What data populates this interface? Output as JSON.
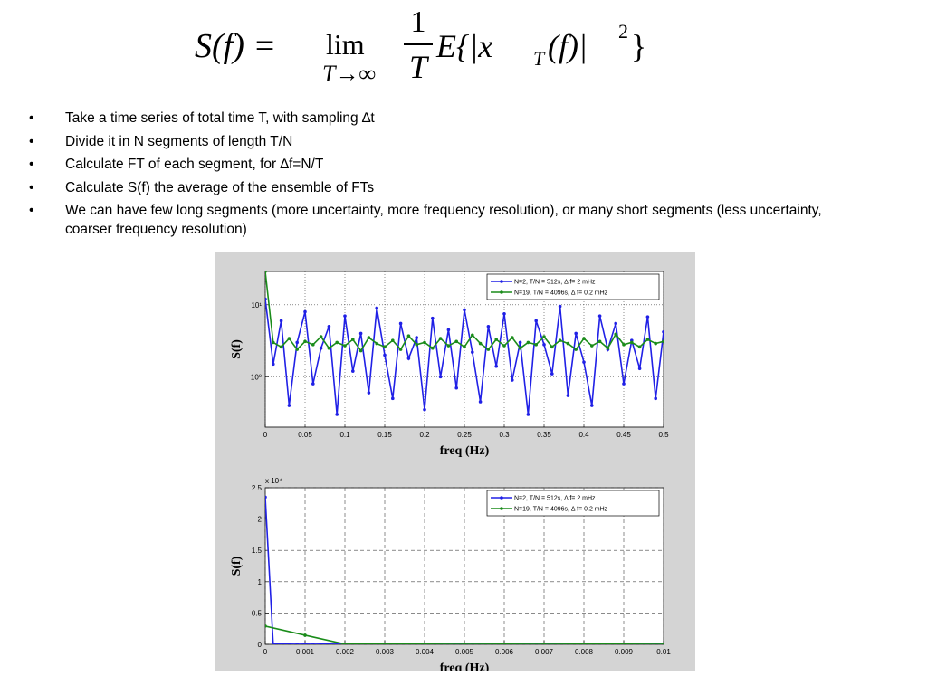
{
  "formula": {
    "lhs": "S(f) =",
    "lim": "lim",
    "lim_sub": "T→∞",
    "num": "1",
    "den": "T",
    "rhs": "E{|x",
    "rhs_sub": "T",
    "rhs_tail": "(f)|",
    "rhs_sup": "2",
    "rhs_close": "}"
  },
  "bullets": [
    "Take a time series of total time T, with sampling ∆t",
    "Divide it in N segments of length T/N",
    "Calculate FT of each segment, for ∆f=N/T",
    "Calculate S(f) the average of the ensemble of FTs",
    "We can have few long segments (more uncertainty, more frequency resolution), or many short segments (less uncertainty, coarser frequency resolution)"
  ],
  "chart_data": [
    {
      "type": "line",
      "yscale": "log",
      "ylabel": "S(f)",
      "xlabel": "freq (Hz)",
      "grid": true,
      "legend": "northeast",
      "xlim": [
        0,
        0.5
      ],
      "xticks": [
        0,
        0.05,
        0.1,
        0.15,
        0.2,
        0.25,
        0.3,
        0.35,
        0.4,
        0.45,
        0.5
      ],
      "ylim": [
        0.2,
        29
      ],
      "yticks": [
        {
          "value": 1,
          "label": "10⁰"
        },
        {
          "value": 10,
          "label": "10¹"
        }
      ],
      "series": [
        {
          "name": "N=2, T/N = 512s, Δ f= 2 mHz",
          "color": "#2020e6",
          "x": [
            0,
            0.01,
            0.02,
            0.03,
            0.04,
            0.05,
            0.06,
            0.07,
            0.08,
            0.09,
            0.1,
            0.11,
            0.12,
            0.13,
            0.14,
            0.15,
            0.16,
            0.17,
            0.18,
            0.19,
            0.2,
            0.21,
            0.22,
            0.23,
            0.24,
            0.25,
            0.26,
            0.27,
            0.28,
            0.29,
            0.3,
            0.31,
            0.32,
            0.33,
            0.34,
            0.35,
            0.36,
            0.37,
            0.38,
            0.39,
            0.4,
            0.41,
            0.42,
            0.43,
            0.44,
            0.45,
            0.46,
            0.47,
            0.48,
            0.49,
            0.5
          ],
          "values": [
            12,
            1.5,
            6,
            0.4,
            3,
            8,
            0.8,
            2.5,
            5,
            0.3,
            7,
            1.2,
            4,
            0.6,
            9,
            2,
            0.5,
            5.5,
            1.8,
            3.5,
            0.35,
            6.5,
            1,
            4.5,
            0.7,
            8.5,
            2.2,
            0.45,
            5,
            1.4,
            7.5,
            0.9,
            3,
            0.3,
            6,
            2.8,
            1.1,
            9.5,
            0.55,
            4,
            1.6,
            0.4,
            7,
            2.4,
            5.5,
            0.8,
            3.2,
            1.3,
            6.8,
            0.5,
            4.2
          ]
        },
        {
          "name": "N=19, T/N = 4096s, Δ f= 0.2 mHz",
          "color": "#1a8c1a",
          "x": [
            0,
            0.01,
            0.02,
            0.03,
            0.04,
            0.05,
            0.06,
            0.07,
            0.08,
            0.09,
            0.1,
            0.11,
            0.12,
            0.13,
            0.14,
            0.15,
            0.16,
            0.17,
            0.18,
            0.19,
            0.2,
            0.21,
            0.22,
            0.23,
            0.24,
            0.25,
            0.26,
            0.27,
            0.28,
            0.29,
            0.3,
            0.31,
            0.32,
            0.33,
            0.34,
            0.35,
            0.36,
            0.37,
            0.38,
            0.39,
            0.4,
            0.41,
            0.42,
            0.43,
            0.44,
            0.45,
            0.46,
            0.47,
            0.48,
            0.49,
            0.5
          ],
          "values": [
            29,
            3,
            2.6,
            3.4,
            2.4,
            3.1,
            2.8,
            3.6,
            2.5,
            3.0,
            2.7,
            3.3,
            2.3,
            3.5,
            2.9,
            2.6,
            3.2,
            2.4,
            3.7,
            2.8,
            3.0,
            2.5,
            3.4,
            2.7,
            3.1,
            2.6,
            3.8,
            2.9,
            2.4,
            3.3,
            2.7,
            3.5,
            2.5,
            3.0,
            2.8,
            3.6,
            2.6,
            3.2,
            2.9,
            2.4,
            3.4,
            2.7,
            3.1,
            2.5,
            3.9,
            2.8,
            3.0,
            2.6,
            3.3,
            2.9,
            3.1
          ]
        }
      ]
    },
    {
      "type": "line",
      "ylabel": "S(f)",
      "xlabel": "freq (Hz)",
      "grid": true,
      "legend": "northeast",
      "y_multiplier": "x 10⁴",
      "xlim": [
        0,
        0.01
      ],
      "xticks": [
        0,
        0.001,
        0.002,
        0.003,
        0.004,
        0.005,
        0.006,
        0.007,
        0.008,
        0.009,
        0.01
      ],
      "ylim": [
        0,
        25000
      ],
      "yticks": [
        0,
        {
          "value": 5000,
          "label": "0.5"
        },
        {
          "value": 10000,
          "label": "1"
        },
        {
          "value": 15000,
          "label": "1.5"
        },
        {
          "value": 20000,
          "label": "2"
        },
        {
          "value": 25000,
          "label": "2.5"
        }
      ],
      "series": [
        {
          "name": "N=2, T/N = 512s, Δ f= 2 mHz",
          "color": "#2020e6",
          "x": [
            0,
            0.0002,
            0.0004,
            0.0006,
            0.0008,
            0.001,
            0.0012,
            0.0014,
            0.0016,
            0.0018,
            0.002,
            0.0022,
            0.0024,
            0.0026,
            0.0028,
            0.003,
            0.0032,
            0.0034,
            0.0036,
            0.0038,
            0.004,
            0.0042,
            0.0044,
            0.0046,
            0.0048,
            0.005,
            0.0052,
            0.0054,
            0.0056,
            0.0058,
            0.006,
            0.0062,
            0.0064,
            0.0066,
            0.0068,
            0.007,
            0.0072,
            0.0074,
            0.0076,
            0.0078,
            0.008,
            0.0082,
            0.0084,
            0.0086,
            0.0088,
            0.009,
            0.0092,
            0.0094,
            0.0096,
            0.0098,
            0.01
          ],
          "values": [
            23500,
            30,
            20,
            25,
            15,
            20,
            18,
            22,
            20,
            15,
            20,
            25,
            18,
            20,
            22,
            15,
            20,
            18,
            25,
            20,
            15,
            20,
            22,
            18,
            20,
            25,
            15,
            20,
            18,
            22,
            20,
            15,
            25,
            20,
            18,
            20,
            22,
            15,
            20,
            18,
            25,
            20,
            15,
            22,
            20,
            18,
            20,
            25,
            15,
            20,
            18
          ]
        },
        {
          "name": "N=19, T/N = 4096s, Δ f= 0.2 mHz",
          "color": "#1a8c1a",
          "x": [
            0,
            0.001,
            0.002,
            0.003,
            0.004,
            0.005,
            0.006,
            0.007,
            0.008,
            0.009,
            0.01
          ],
          "values": [
            2900,
            1450,
            30,
            20,
            25,
            15,
            20,
            18,
            22,
            20,
            15
          ]
        }
      ]
    }
  ]
}
